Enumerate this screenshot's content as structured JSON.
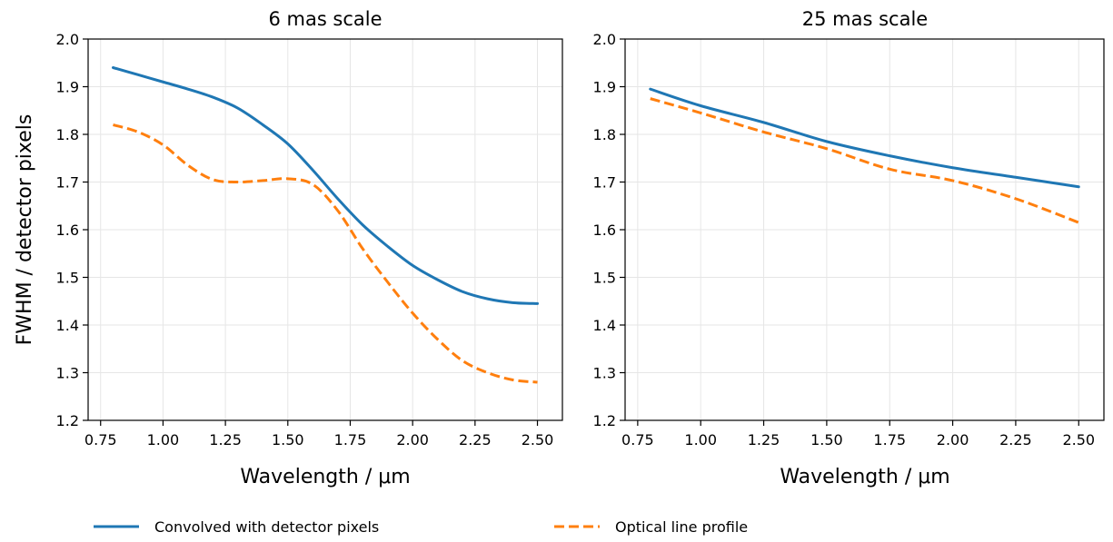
{
  "legend": [
    {
      "label": "Convolved with detector pixels",
      "color": "#1f77b4",
      "style": "solid"
    },
    {
      "label": "Optical line profile",
      "color": "#ff7f0e",
      "style": "dashed"
    }
  ],
  "chart_data": [
    {
      "type": "line",
      "title": "6 mas scale",
      "xlabel": "Wavelength / μm",
      "ylabel": "FWHM / detector pixels",
      "xlim": [
        0.7,
        2.6
      ],
      "ylim": [
        1.2,
        2.0
      ],
      "xticks": [
        "0.75",
        "1.00",
        "1.25",
        "1.50",
        "1.75",
        "2.00",
        "2.25",
        "2.50"
      ],
      "yticks": [
        "1.2",
        "1.3",
        "1.4",
        "1.5",
        "1.6",
        "1.7",
        "1.8",
        "1.9",
        "2.0"
      ],
      "grid": true,
      "series": [
        {
          "name": "Convolved with detector pixels",
          "color": "#1f77b4",
          "style": "solid",
          "x": [
            0.8,
            0.9,
            1.0,
            1.1,
            1.2,
            1.3,
            1.4,
            1.5,
            1.6,
            1.7,
            1.8,
            1.9,
            2.0,
            2.1,
            2.2,
            2.3,
            2.4,
            2.5
          ],
          "y": [
            1.94,
            1.925,
            1.91,
            1.895,
            1.878,
            1.855,
            1.82,
            1.78,
            1.725,
            1.665,
            1.61,
            1.565,
            1.525,
            1.495,
            1.47,
            1.455,
            1.447,
            1.445
          ]
        },
        {
          "name": "Optical line profile",
          "color": "#ff7f0e",
          "style": "dashed",
          "x": [
            0.8,
            0.9,
            1.0,
            1.1,
            1.2,
            1.3,
            1.4,
            1.5,
            1.6,
            1.7,
            1.8,
            1.9,
            2.0,
            2.1,
            2.2,
            2.3,
            2.4,
            2.5
          ],
          "y": [
            1.82,
            1.805,
            1.778,
            1.735,
            1.705,
            1.7,
            1.703,
            1.707,
            1.695,
            1.64,
            1.56,
            1.49,
            1.425,
            1.37,
            1.325,
            1.3,
            1.285,
            1.28
          ]
        }
      ]
    },
    {
      "type": "line",
      "title": "25 mas scale",
      "xlabel": "Wavelength / μm",
      "ylabel": "",
      "xlim": [
        0.7,
        2.6
      ],
      "ylim": [
        1.2,
        2.0
      ],
      "xticks": [
        "0.75",
        "1.00",
        "1.25",
        "1.50",
        "1.75",
        "2.00",
        "2.25",
        "2.50"
      ],
      "yticks": [
        "1.2",
        "1.3",
        "1.4",
        "1.5",
        "1.6",
        "1.7",
        "1.8",
        "1.9",
        "2.0"
      ],
      "grid": true,
      "series": [
        {
          "name": "Convolved with detector pixels",
          "color": "#1f77b4",
          "style": "solid",
          "x": [
            0.8,
            1.0,
            1.25,
            1.5,
            1.75,
            2.0,
            2.25,
            2.5
          ],
          "y": [
            1.895,
            1.86,
            1.825,
            1.785,
            1.755,
            1.73,
            1.71,
            1.69
          ]
        },
        {
          "name": "Optical line profile",
          "color": "#ff7f0e",
          "style": "dashed",
          "x": [
            0.8,
            1.0,
            1.25,
            1.5,
            1.75,
            2.0,
            2.25,
            2.5
          ],
          "y": [
            1.875,
            1.845,
            1.805,
            1.77,
            1.727,
            1.703,
            1.665,
            1.615
          ]
        }
      ]
    }
  ]
}
